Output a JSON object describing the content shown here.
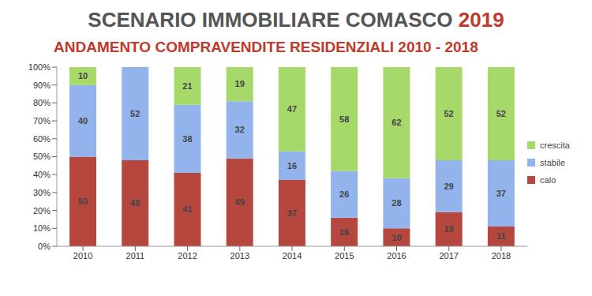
{
  "chart_data": {
    "type": "bar",
    "title": "SCENARIO IMMOBILIARE COMASCO 2019",
    "subtitle": "ANDAMENTO COMPRAVENDITE RESIDENZIALI 2010 - 2018",
    "categories": [
      "2010",
      "2011",
      "2012",
      "2013",
      "2014",
      "2015",
      "2016",
      "2017",
      "2018"
    ],
    "series": [
      {
        "name": "calo",
        "color": "#b5473f",
        "values": [
          50,
          48,
          41,
          49,
          37,
          16,
          10,
          19,
          11
        ]
      },
      {
        "name": "stabile",
        "color": "#93b3ec",
        "values": [
          40,
          52,
          38,
          32,
          16,
          26,
          28,
          29,
          37
        ]
      },
      {
        "name": "crescita",
        "color": "#a6d96a",
        "values": [
          10,
          0,
          21,
          19,
          47,
          58,
          62,
          52,
          52
        ]
      }
    ],
    "ylim": [
      0,
      100
    ],
    "yticks": [
      {
        "value": 0,
        "label": "0%"
      },
      {
        "value": 10,
        "label": "10%"
      },
      {
        "value": 20,
        "label": "20%"
      },
      {
        "value": 30,
        "label": "30%"
      },
      {
        "value": 40,
        "label": "40%"
      },
      {
        "value": 50,
        "label": "50%"
      },
      {
        "value": 60,
        "label": "60%"
      },
      {
        "value": 70,
        "label": "70%"
      },
      {
        "value": 80,
        "label": "80%"
      },
      {
        "value": 90,
        "label": "90%"
      },
      {
        "value": 100,
        "label": "100%"
      }
    ],
    "stacked": true,
    "data_labels": true,
    "grid": false,
    "legend": "right"
  }
}
